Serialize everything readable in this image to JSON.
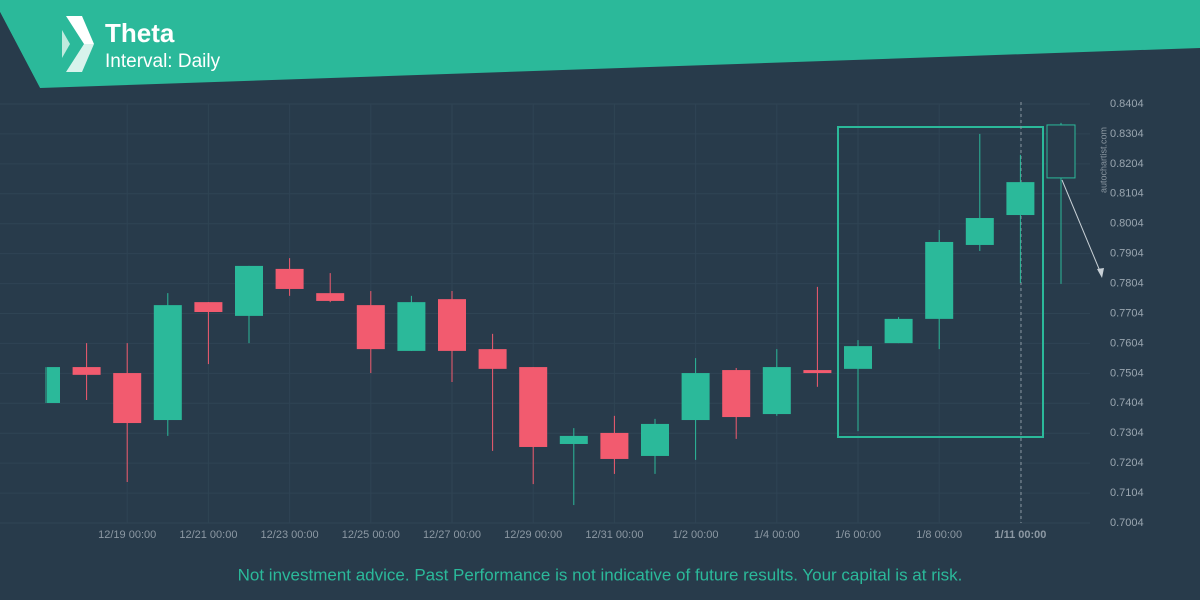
{
  "chart_data": {
    "type": "candlestick",
    "title": "Theta",
    "subtitle": "Interval: Daily",
    "watermark": "autochartist.com",
    "categories": [
      null,
      null,
      "12/19 00:00",
      null,
      "12/21 00:00",
      null,
      "12/23 00:00",
      null,
      "12/25 00:00",
      null,
      "12/27 00:00",
      null,
      "12/29 00:00",
      null,
      "12/31 00:00",
      null,
      "1/2 00:00",
      null,
      "1/4 00:00",
      null,
      "1/6 00:00",
      null,
      "1/8 00:00",
      null,
      "1/11 00:00",
      null
    ],
    "open": [
      0.7405,
      0.7525,
      0.7505,
      0.7348,
      0.7742,
      0.7696,
      0.7853,
      0.7772,
      0.7732,
      0.7579,
      0.7752,
      0.7585,
      0.7525,
      0.7268,
      0.7305,
      0.7228,
      0.7348,
      0.7515,
      0.7368,
      0.7515,
      0.7519,
      0.7605,
      0.7686,
      0.7933,
      0.8033,
      0.8157
    ],
    "high": [
      0.7525,
      0.7605,
      0.7605,
      0.7772,
      0.7742,
      0.7863,
      0.7889,
      0.7839,
      0.7779,
      0.7763,
      0.7779,
      0.7636,
      0.7525,
      0.7321,
      0.7362,
      0.7352,
      0.7555,
      0.7522,
      0.7585,
      0.7793,
      0.7615,
      0.7692,
      0.7983,
      0.8304,
      0.8234,
      0.8341
    ],
    "low": [
      0.7405,
      0.7415,
      0.7141,
      0.7295,
      0.7535,
      0.7605,
      0.7763,
      0.7742,
      0.7505,
      0.7579,
      0.7475,
      0.7245,
      0.7134,
      0.7064,
      0.7168,
      0.7168,
      0.7215,
      0.7285,
      0.7362,
      0.7459,
      0.7311,
      0.7605,
      0.7585,
      0.7913,
      0.7806,
      0.7803
    ],
    "close": [
      0.7525,
      0.7499,
      0.7338,
      0.7732,
      0.7709,
      0.7863,
      0.7786,
      0.7746,
      0.7585,
      0.7742,
      0.7579,
      0.7519,
      0.7258,
      0.7295,
      0.7218,
      0.7335,
      0.7505,
      0.7358,
      0.7525,
      0.7505,
      0.7595,
      0.7686,
      0.7943,
      0.8023,
      0.8143,
      0.8334
    ],
    "up_color": "#2bb99a",
    "down_color": "#f25b6f",
    "hollow_last": true,
    "ylim": [
      0.7004,
      0.8404
    ],
    "yticks": [
      0.7004,
      0.7104,
      0.7204,
      0.7304,
      0.7404,
      0.7504,
      0.7604,
      0.7704,
      0.7804,
      0.7904,
      0.8004,
      0.8104,
      0.8204,
      0.8304,
      0.8404
    ],
    "grid": true
  },
  "footer": "Not investment advice. Past Performance is not indicative of future results. Your capital is at risk."
}
